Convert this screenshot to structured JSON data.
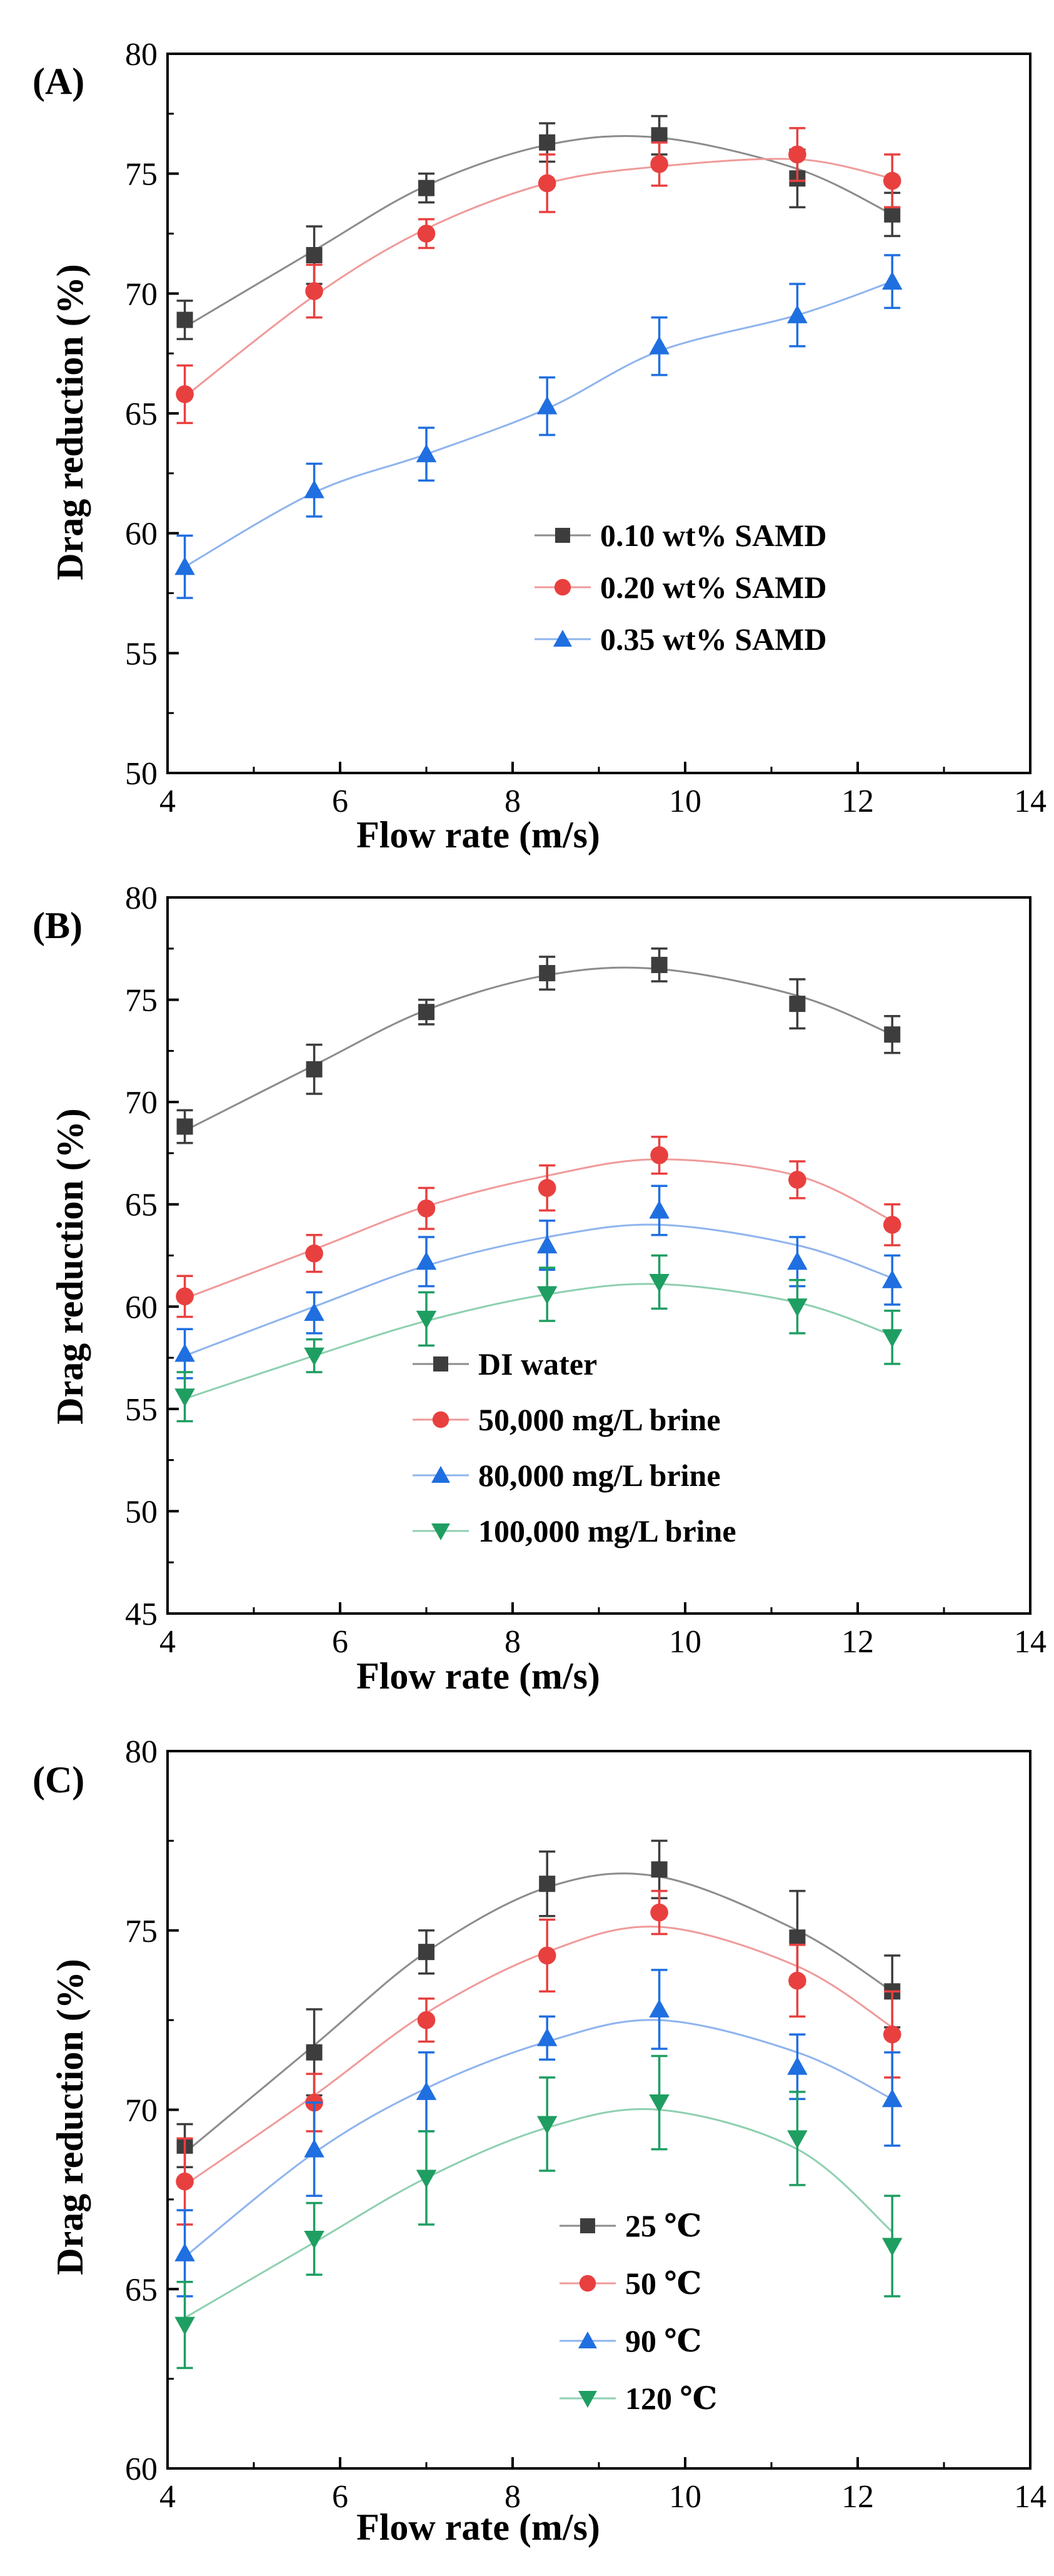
{
  "colors": {
    "black": "#3d3d3d",
    "red": "#e8403f",
    "blue": "#1f6fe0",
    "green": "#1f9e62",
    "black_line": "#8c8c8c",
    "red_line": "#f09a9a",
    "blue_line": "#8fb4ee",
    "green_line": "#8fd0b0"
  },
  "chart_data": [
    {
      "type": "line",
      "panel_label": "(A)",
      "xlabel": "Flow rate (m/s)",
      "ylabel": "Drag reduction (%)",
      "xlim": [
        4,
        14
      ],
      "ylim": [
        50,
        80
      ],
      "xticks": [
        4,
        6,
        8,
        10,
        12,
        14
      ],
      "yticks": [
        50,
        55,
        60,
        65,
        70,
        75,
        80
      ],
      "legend_position": "lower-right",
      "x": [
        4.2,
        5.7,
        7.0,
        8.4,
        9.7,
        11.3,
        12.4
      ],
      "series": [
        {
          "name": "0.10 wt% SAMD",
          "marker": "square",
          "color": "#3d3d3d",
          "line_color": "#8c8c8c",
          "values": [
            68.9,
            71.6,
            74.4,
            76.3,
            76.6,
            74.8,
            73.3
          ],
          "errors": [
            0.8,
            1.2,
            0.6,
            0.8,
            0.8,
            1.2,
            0.9
          ],
          "fit": [
            68.6,
            71.8,
            74.5,
            76.2,
            76.5,
            75.2,
            73.3
          ]
        },
        {
          "name": "0.20 wt% SAMD",
          "marker": "circle",
          "color": "#e8403f",
          "line_color": "#f09a9a",
          "values": [
            65.8,
            70.1,
            72.5,
            74.6,
            75.4,
            75.8,
            74.7
          ],
          "errors": [
            1.2,
            1.1,
            0.6,
            1.2,
            0.9,
            1.1,
            1.1
          ],
          "fit": [
            65.7,
            69.9,
            72.7,
            74.6,
            75.3,
            75.6,
            74.8
          ]
        },
        {
          "name": "0.35 wt% SAMD",
          "marker": "triangle-up",
          "color": "#1f6fe0",
          "line_color": "#8fb4ee",
          "values": [
            58.6,
            61.8,
            63.3,
            65.3,
            67.8,
            69.1,
            70.5
          ],
          "errors": [
            1.3,
            1.1,
            1.1,
            1.2,
            1.2,
            1.3,
            1.1
          ],
          "fit": [
            58.6,
            61.7,
            63.3,
            65.2,
            67.6,
            69.1,
            70.5
          ]
        }
      ]
    },
    {
      "type": "line",
      "panel_label": "(B)",
      "xlabel": "Flow rate (m/s)",
      "ylabel": "Drag reduction (%)",
      "xlim": [
        4,
        14
      ],
      "ylim": [
        45,
        80
      ],
      "xticks": [
        4,
        6,
        8,
        10,
        12,
        14
      ],
      "yticks": [
        45,
        50,
        55,
        60,
        65,
        70,
        75,
        80
      ],
      "legend_position": "lower-center",
      "x": [
        4.2,
        5.7,
        7.0,
        8.4,
        9.7,
        11.3,
        12.4
      ],
      "series": [
        {
          "name": "DI water",
          "marker": "square",
          "color": "#3d3d3d",
          "line_color": "#8c8c8c",
          "values": [
            68.8,
            71.6,
            74.4,
            76.3,
            76.7,
            74.8,
            73.3
          ],
          "errors": [
            0.8,
            1.2,
            0.6,
            0.8,
            0.8,
            1.2,
            0.9
          ],
          "fit": [
            68.6,
            71.8,
            74.5,
            76.2,
            76.5,
            75.2,
            73.3
          ]
        },
        {
          "name": "50,000 mg/L brine",
          "marker": "circle",
          "color": "#e8403f",
          "line_color": "#f09a9a",
          "values": [
            60.5,
            62.6,
            64.8,
            65.8,
            67.4,
            66.2,
            64.0
          ],
          "errors": [
            1.0,
            0.9,
            1.0,
            1.1,
            0.9,
            0.9,
            1.0
          ],
          "fit": [
            60.4,
            62.8,
            64.9,
            66.4,
            67.2,
            66.4,
            64.2
          ]
        },
        {
          "name": "80,000 mg/L brine",
          "marker": "triangle-up",
          "color": "#1f6fe0",
          "line_color": "#8fb4ee",
          "values": [
            57.7,
            59.7,
            62.2,
            63.0,
            64.7,
            62.2,
            61.3
          ],
          "errors": [
            1.2,
            1.0,
            1.2,
            1.2,
            1.2,
            1.2,
            1.2
          ],
          "fit": [
            57.6,
            60.0,
            62.0,
            63.4,
            64.0,
            63.0,
            61.4
          ]
        },
        {
          "name": "100,000 mg/L brine",
          "marker": "triangle-down",
          "color": "#1f9e62",
          "line_color": "#8fd0b0",
          "values": [
            55.6,
            57.6,
            59.4,
            60.6,
            61.2,
            60.0,
            58.5
          ],
          "errors": [
            1.2,
            0.8,
            1.3,
            1.3,
            1.3,
            1.3,
            1.3
          ],
          "fit": [
            55.5,
            57.6,
            59.3,
            60.6,
            61.1,
            60.2,
            58.6
          ]
        }
      ]
    },
    {
      "type": "line",
      "panel_label": "(C)",
      "xlabel": "Flow rate (m/s)",
      "ylabel": "Drag reduction (%)",
      "xlim": [
        4,
        14
      ],
      "ylim": [
        60,
        80
      ],
      "xticks": [
        4,
        6,
        8,
        10,
        12,
        14
      ],
      "yticks": [
        60,
        65,
        70,
        75,
        80
      ],
      "legend_position": "lower-center",
      "x": [
        4.2,
        5.7,
        7.0,
        8.4,
        9.7,
        11.3,
        12.4
      ],
      "series": [
        {
          "name": "25 ℃",
          "marker": "square",
          "color": "#3d3d3d",
          "line_color": "#8c8c8c",
          "values": [
            69.0,
            71.6,
            74.4,
            76.3,
            76.7,
            74.8,
            73.3
          ],
          "errors": [
            0.6,
            1.2,
            0.6,
            0.9,
            0.8,
            1.3,
            1.0
          ],
          "fit": [
            68.8,
            71.8,
            74.4,
            76.2,
            76.5,
            75.0,
            73.3
          ]
        },
        {
          "name": "50 ℃",
          "marker": "circle",
          "color": "#e8403f",
          "line_color": "#f09a9a",
          "values": [
            68.0,
            70.2,
            72.5,
            74.3,
            75.5,
            73.6,
            72.1
          ],
          "errors": [
            1.2,
            0.8,
            0.6,
            1.0,
            0.6,
            1.0,
            1.2
          ],
          "fit": [
            67.9,
            70.4,
            72.7,
            74.4,
            75.1,
            74.0,
            72.3
          ]
        },
        {
          "name": "90 ℃",
          "marker": "triangle-up",
          "color": "#1f6fe0",
          "line_color": "#8fb4ee",
          "values": [
            66.0,
            68.9,
            70.5,
            72.0,
            72.8,
            71.2,
            70.3
          ],
          "errors": [
            1.2,
            1.3,
            1.1,
            0.6,
            1.1,
            0.9,
            1.3
          ],
          "fit": [
            65.9,
            68.8,
            70.6,
            71.9,
            72.5,
            71.6,
            70.3
          ]
        },
        {
          "name": "120 ℃",
          "marker": "triangle-down",
          "color": "#1f9e62",
          "line_color": "#8fd0b0",
          "values": [
            64.0,
            66.4,
            68.1,
            69.6,
            70.2,
            69.2,
            66.2
          ],
          "errors": [
            1.2,
            1.0,
            1.3,
            1.3,
            1.3,
            1.3,
            1.4
          ],
          "fit": [
            64.2,
            66.3,
            68.1,
            69.5,
            70.0,
            68.9,
            66.6
          ]
        }
      ]
    }
  ]
}
